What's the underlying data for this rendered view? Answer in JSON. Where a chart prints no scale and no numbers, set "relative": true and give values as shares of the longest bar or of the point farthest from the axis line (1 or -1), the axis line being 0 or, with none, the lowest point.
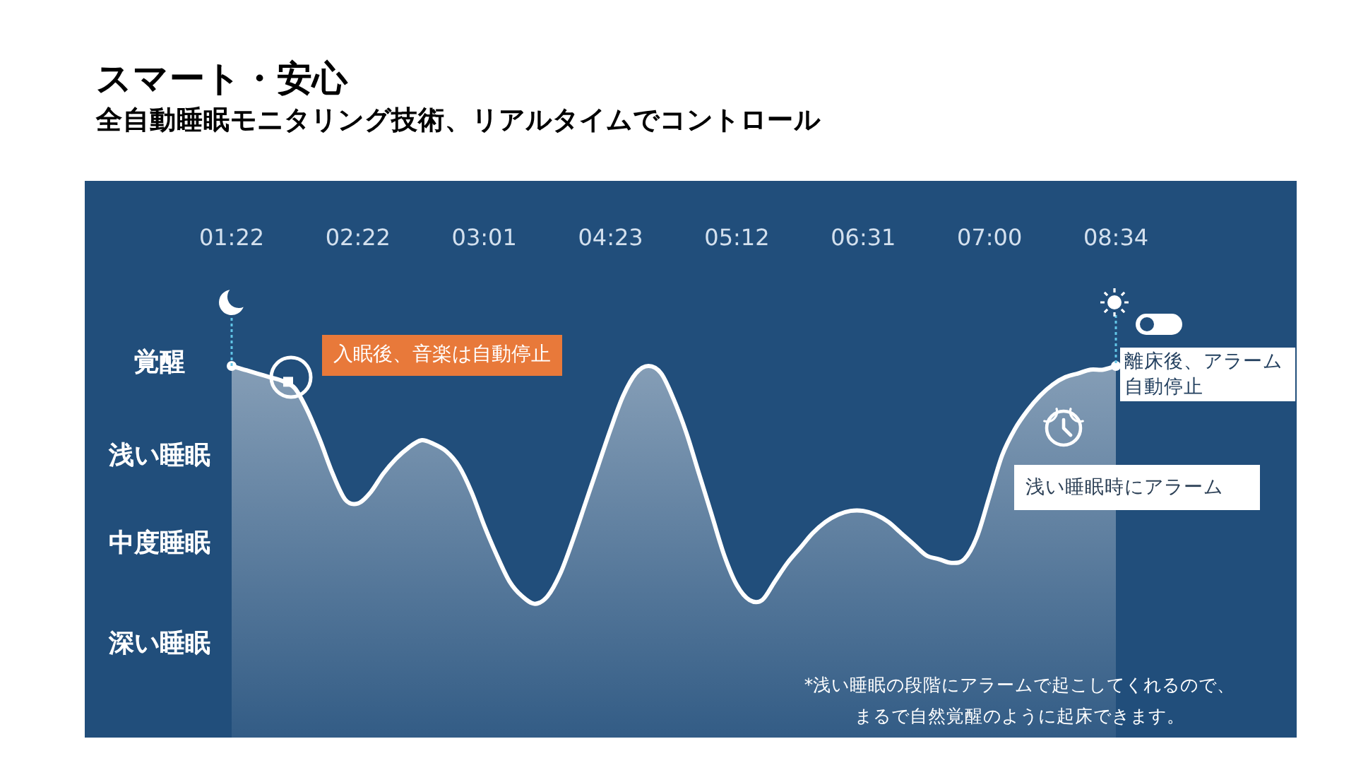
{
  "chart_data": {
    "type": "area",
    "relative": true,
    "title": "スマート・安心",
    "subtitle": "全自動睡眠モニタリング技術、リアルタイムでコントロール",
    "categories": [
      "01:22",
      null,
      null,
      null,
      null,
      null,
      null,
      null,
      null,
      null,
      "02:22",
      null,
      null,
      null,
      null,
      null,
      null,
      null,
      null,
      null,
      "03:01",
      null,
      null,
      null,
      null,
      null,
      null,
      null,
      null,
      null,
      "04:23",
      null,
      null,
      null,
      null,
      null,
      null,
      null,
      null,
      null,
      "05:12",
      null,
      null,
      null,
      null,
      null,
      null,
      null,
      null,
      null,
      "06:31",
      null,
      null,
      null,
      null,
      null,
      null,
      null,
      null,
      null,
      "07:00",
      null,
      null,
      null,
      null,
      null,
      null,
      null,
      null,
      null,
      "08:34"
    ],
    "series": [
      {
        "color": "#ffffff",
        "values": [
          1,
          0.99,
          0.98,
          0.97,
          0.96,
          0.94,
          0.88,
          0.8,
          0.71,
          0.64,
          0.63,
          0.66,
          0.71,
          0.75,
          0.78,
          0.8,
          0.79,
          0.77,
          0.73,
          0.66,
          0.57,
          0.49,
          0.42,
          0.38,
          0.36,
          0.38,
          0.44,
          0.53,
          0.63,
          0.73,
          0.83,
          0.92,
          0.98,
          1,
          0.98,
          0.91,
          0.82,
          0.71,
          0.6,
          0.49,
          0.41,
          0.37,
          0.37,
          0.42,
          0.47,
          0.51,
          0.55,
          0.58,
          0.6,
          0.61,
          0.61,
          0.6,
          0.58,
          0.55,
          0.52,
          0.49,
          0.48,
          0.47,
          0.48,
          0.54,
          0.65,
          0.76,
          0.83,
          0.88,
          0.92,
          0.95,
          0.97,
          0.98,
          0.99,
          0.99,
          1
        ]
      }
    ],
    "annotations": [
      "覚醒",
      "浅い睡眠",
      "中度睡眠",
      "深い睡眠",
      "入眠後、音楽は自動停止",
      {
        "text": "離床後、アラーム自動停止",
        "x": "08:34",
        "y": 1
      },
      "浅い睡眠時にアラーム",
      "*浅い睡眠の段階にアラームで起こしてくれるので、まるで自然覚醒のように起床できます。"
    ]
  }
}
